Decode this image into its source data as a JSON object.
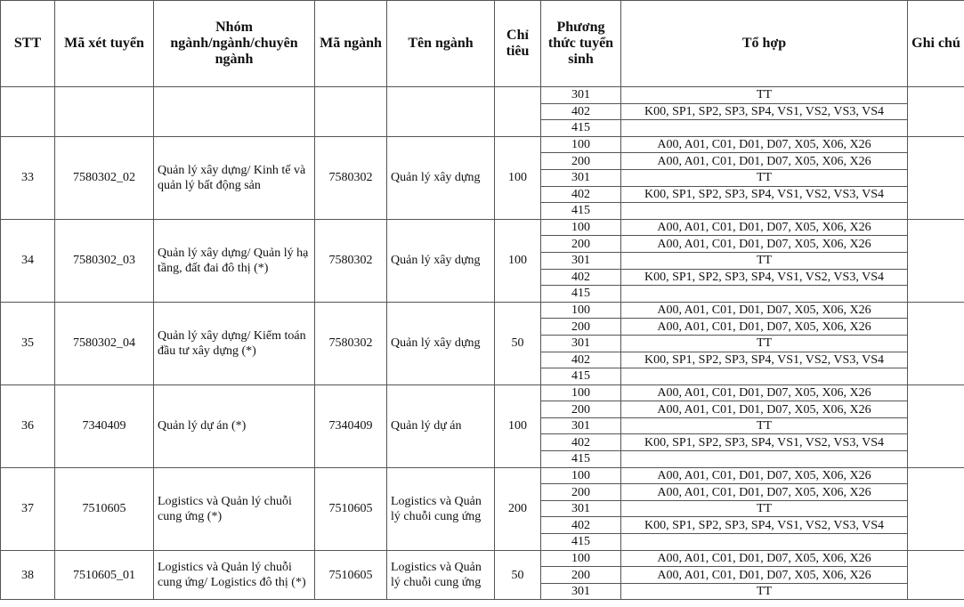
{
  "headers": [
    "STT",
    "Mã xét tuyển",
    "Nhóm ngành/ngành/chuyên ngành",
    "Mã ngành",
    "Tên ngành",
    "Chỉ tiêu",
    "Phương thức tuyển sinh",
    "Tổ hợp",
    "Ghi chú"
  ],
  "groups": [
    {
      "stt": "",
      "ma_xet_tuyen": "",
      "nhom_nganh": "",
      "ma_nganh": "",
      "ten_nganh": "",
      "chi_tieu": "",
      "ghi_chu": "",
      "methods": [
        {
          "code": "301",
          "to_hop": "TT"
        },
        {
          "code": "402",
          "to_hop": "K00, SP1, SP2, SP3, SP4, VS1, VS2, VS3, VS4"
        },
        {
          "code": "415",
          "to_hop": ""
        }
      ]
    },
    {
      "stt": "33",
      "ma_xet_tuyen": "7580302_02",
      "nhom_nganh": "Quản lý xây dựng/ Kinh tế và quản lý bất động sản",
      "ma_nganh": "7580302",
      "ten_nganh": "Quản lý xây dựng",
      "chi_tieu": "100",
      "ghi_chu": "",
      "methods": [
        {
          "code": "100",
          "to_hop": "A00, A01, C01, D01, D07, X05, X06, X26"
        },
        {
          "code": "200",
          "to_hop": "A00, A01, C01, D01, D07, X05, X06, X26"
        },
        {
          "code": "301",
          "to_hop": "TT"
        },
        {
          "code": "402",
          "to_hop": "K00, SP1, SP2, SP3, SP4, VS1, VS2, VS3, VS4"
        },
        {
          "code": "415",
          "to_hop": ""
        }
      ]
    },
    {
      "stt": "34",
      "ma_xet_tuyen": "7580302_03",
      "nhom_nganh": "Quản lý xây dựng/ Quản lý hạ tầng, đất đai đô thị (*)",
      "ma_nganh": "7580302",
      "ten_nganh": "Quản lý xây dựng",
      "chi_tieu": "100",
      "ghi_chu": "",
      "methods": [
        {
          "code": "100",
          "to_hop": "A00, A01, C01, D01, D07, X05, X06, X26"
        },
        {
          "code": "200",
          "to_hop": "A00, A01, C01, D01, D07, X05, X06, X26"
        },
        {
          "code": "301",
          "to_hop": "TT"
        },
        {
          "code": "402",
          "to_hop": "K00, SP1, SP2, SP3, SP4, VS1, VS2, VS3, VS4"
        },
        {
          "code": "415",
          "to_hop": ""
        }
      ]
    },
    {
      "stt": "35",
      "ma_xet_tuyen": "7580302_04",
      "nhom_nganh": "Quản lý xây dựng/ Kiểm toán đầu tư xây dựng (*)",
      "ma_nganh": "7580302",
      "ten_nganh": "Quản lý xây dựng",
      "chi_tieu": "50",
      "ghi_chu": "",
      "methods": [
        {
          "code": "100",
          "to_hop": "A00, A01, C01, D01, D07, X05, X06, X26"
        },
        {
          "code": "200",
          "to_hop": "A00, A01, C01, D01, D07, X05, X06, X26"
        },
        {
          "code": "301",
          "to_hop": "TT"
        },
        {
          "code": "402",
          "to_hop": "K00, SP1, SP2, SP3, SP4, VS1, VS2, VS3, VS4"
        },
        {
          "code": "415",
          "to_hop": ""
        }
      ]
    },
    {
      "stt": "36",
      "ma_xet_tuyen": "7340409",
      "nhom_nganh": "Quản lý dự án (*)",
      "ma_nganh": "7340409",
      "ten_nganh": "Quản lý dự án",
      "chi_tieu": "100",
      "ghi_chu": "",
      "methods": [
        {
          "code": "100",
          "to_hop": "A00, A01, C01, D01, D07, X05, X06, X26"
        },
        {
          "code": "200",
          "to_hop": "A00, A01, C01, D01, D07, X05, X06, X26"
        },
        {
          "code": "301",
          "to_hop": "TT"
        },
        {
          "code": "402",
          "to_hop": "K00, SP1, SP2, SP3, SP4, VS1, VS2, VS3, VS4"
        },
        {
          "code": "415",
          "to_hop": ""
        }
      ]
    },
    {
      "stt": "37",
      "ma_xet_tuyen": "7510605",
      "nhom_nganh": "Logistics và Quản lý chuỗi cung ứng (*)",
      "ma_nganh": "7510605",
      "ten_nganh": "Logistics và Quản lý chuỗi cung ứng",
      "chi_tieu": "200",
      "ghi_chu": "",
      "methods": [
        {
          "code": "100",
          "to_hop": "A00, A01, C01, D01, D07, X05, X06, X26"
        },
        {
          "code": "200",
          "to_hop": "A00, A01, C01, D01, D07, X05, X06, X26"
        },
        {
          "code": "301",
          "to_hop": "TT"
        },
        {
          "code": "402",
          "to_hop": "K00, SP1, SP2, SP3, SP4, VS1, VS2, VS3, VS4"
        },
        {
          "code": "415",
          "to_hop": ""
        }
      ]
    },
    {
      "stt": "38",
      "ma_xet_tuyen": "7510605_01",
      "nhom_nganh": "Logistics và Quản lý chuỗi cung ứng/ Logistics đô thị (*)",
      "ma_nganh": "7510605",
      "ten_nganh": "Logistics và Quản lý chuỗi cung ứng",
      "chi_tieu": "50",
      "ghi_chu": "",
      "methods": [
        {
          "code": "100",
          "to_hop": "A00, A01, C01, D01, D07, X05, X06, X26"
        },
        {
          "code": "200",
          "to_hop": "A00, A01, C01, D01, D07, X05, X06, X26"
        },
        {
          "code": "301",
          "to_hop": "TT"
        }
      ]
    }
  ]
}
